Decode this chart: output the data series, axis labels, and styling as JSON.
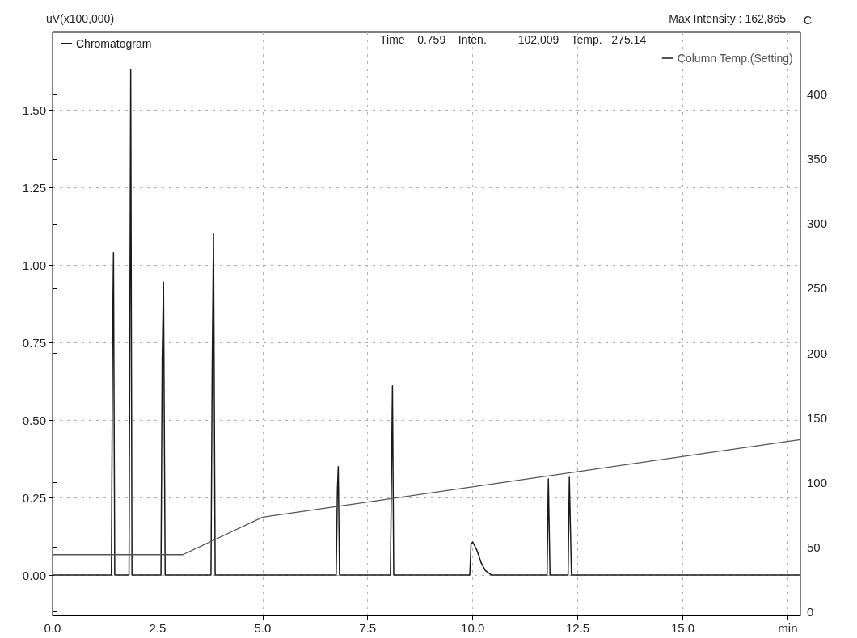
{
  "chart_data": {
    "type": "line",
    "ylabel": "uV(x100,000)",
    "y2label": "C",
    "annotations": [
      "Max Intensity : 162,865",
      "Time    0.759    Inten.          102,009    Temp.   275.14"
    ],
    "xlim": [
      0,
      17.8
    ],
    "xticks": [
      {
        "value": 0,
        "label": "0.0"
      },
      {
        "value": 2.5,
        "label": "2.5"
      },
      {
        "value": 5,
        "label": "5.0"
      },
      {
        "value": 7.5,
        "label": "7.5"
      },
      {
        "value": 10,
        "label": "10.0"
      },
      {
        "value": 12.5,
        "label": "12.5"
      },
      {
        "value": 15,
        "label": "15.0"
      },
      {
        "value": 17.5,
        "label": "min"
      }
    ],
    "ylim": [
      -0.13,
      1.75
    ],
    "yticks": [
      {
        "value": 0,
        "label": "0.00"
      },
      {
        "value": 0.25,
        "label": "0.25"
      },
      {
        "value": 0.5,
        "label": "0.50"
      },
      {
        "value": 0.75,
        "label": "0.75"
      },
      {
        "value": 1,
        "label": "1.00"
      },
      {
        "value": 1.25,
        "label": "1.25"
      },
      {
        "value": 1.5,
        "label": "1.50"
      }
    ],
    "y2lim": [
      -3,
      448
    ],
    "y2ticks": [
      0,
      50,
      100,
      150,
      200,
      250,
      300,
      350,
      400
    ],
    "grid": true,
    "legend": "top",
    "marker": "none",
    "line_style": "solid",
    "series": [
      {
        "name": "Chromatogram",
        "color": "#1a1a1a",
        "x": [
          0,
          1.4,
          1.43,
          1.45,
          1.48,
          1.82,
          1.86,
          1.89,
          2.58,
          2.61,
          2.64,
          2.68,
          3.77,
          3.8,
          3.83,
          3.87,
          6.75,
          6.78,
          6.8,
          6.83,
          8.04,
          8.07,
          8.09,
          8.12,
          9.93,
          9.96,
          10.0,
          10.1,
          10.2,
          10.3,
          10.45,
          11.77,
          11.8,
          11.84,
          12.27,
          12.3,
          12.35,
          17.8
        ],
        "values": [
          0,
          0,
          0.78,
          1.04,
          0,
          0,
          1.63,
          0,
          0,
          0.7,
          0.945,
          0,
          0,
          0.68,
          1.1,
          0,
          0,
          0.28,
          0.35,
          0,
          0,
          0.36,
          0.61,
          0,
          0,
          0.1,
          0.107,
          0.08,
          0.04,
          0.015,
          0,
          0,
          0.31,
          0,
          0,
          0.315,
          0,
          0
        ]
      },
      {
        "name": "Column Temp.(Setting)",
        "color": "#555555",
        "axis": "y2",
        "x": [
          0,
          3.1,
          5.0,
          17.8
        ],
        "values": [
          44,
          44,
          73,
          133
        ]
      }
    ]
  }
}
